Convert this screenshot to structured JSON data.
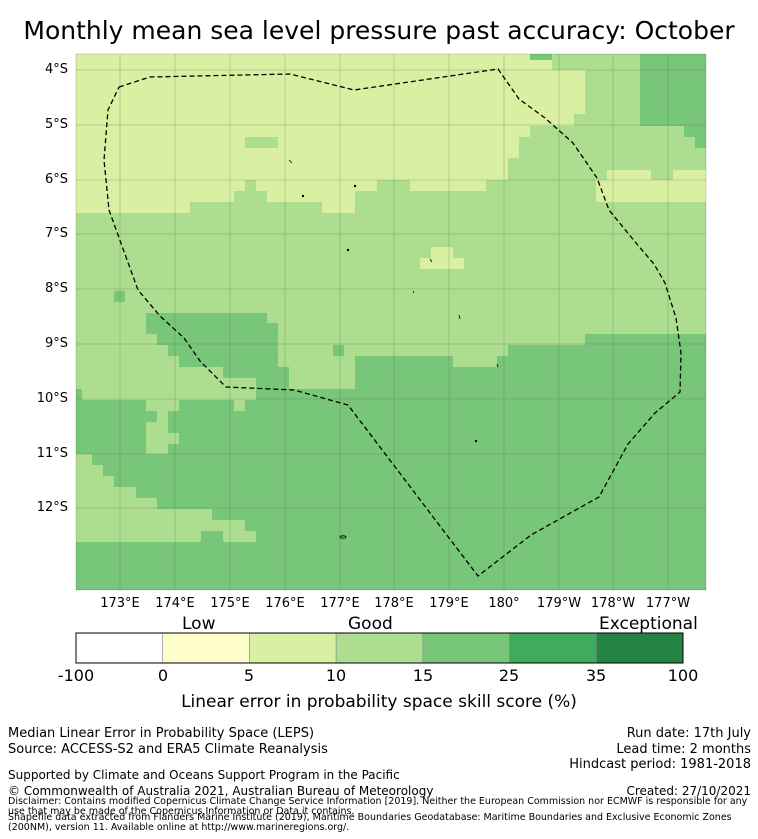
{
  "title": "Monthly mean sea level pressure past accuracy: October",
  "map": {
    "lat_labels": [
      "4°S",
      "5°S",
      "6°S",
      "7°S",
      "8°S",
      "9°S",
      "10°S",
      "11°S",
      "12°S"
    ],
    "lon_labels": [
      "173°E",
      "174°E",
      "175°E",
      "176°E",
      "177°E",
      "178°E",
      "179°E",
      "180°",
      "179°W",
      "178°W",
      "177°W"
    ],
    "boundary_style": "dashed",
    "colors": {
      "very_low": "#ffffff",
      "low": "#fefecb",
      "good_low": "#d9f0a3",
      "good": "#addd8e",
      "good_high": "#78c679",
      "high": "#41ab5d",
      "exceptional": "#238443"
    }
  },
  "colorbar": {
    "categories": [
      "Low",
      "Good",
      "Exceptional"
    ],
    "ticks": [
      "-100",
      "0",
      "5",
      "10",
      "15",
      "25",
      "35",
      "100"
    ],
    "colors": [
      "#ffffff",
      "#fefecb",
      "#d9f0a3",
      "#addd8e",
      "#78c679",
      "#41ab5d",
      "#238443"
    ],
    "label": "Linear error in probability space skill score (%)"
  },
  "footer": {
    "left_line1": "Median Linear Error in Probability Space (LEPS)",
    "left_line2": "Source: ACCESS-S2 and ERA5 Climate Reanalysis",
    "right_line1": "Run date: 17th July",
    "right_line2": "Lead time: 2 months",
    "right_line3": "Hindcast period: 1981-2018",
    "support": "Supported by Climate and Oceans Support Program in the Pacific",
    "copyright": "© Commonwealth of Australia 2021, Australian Bureau of Meteorology",
    "created": "Created: 27/10/2021",
    "disclaimer": "Disclaimer: Contains modified Copernicus Climate Change Service Information [2019]. Neither the European Commission nor ECMWF is responsible for any use that may be made of the Copernicus Information or Data it contains.",
    "shapefile": "Shapefile data extracted from Flanders Marine Institute (2019), Maritime Boundaries Geodatabase: Maritime Boundaries and Exclusive Economic Zones (200NM), version 11. Available online at http://www.marineregions.org/."
  }
}
